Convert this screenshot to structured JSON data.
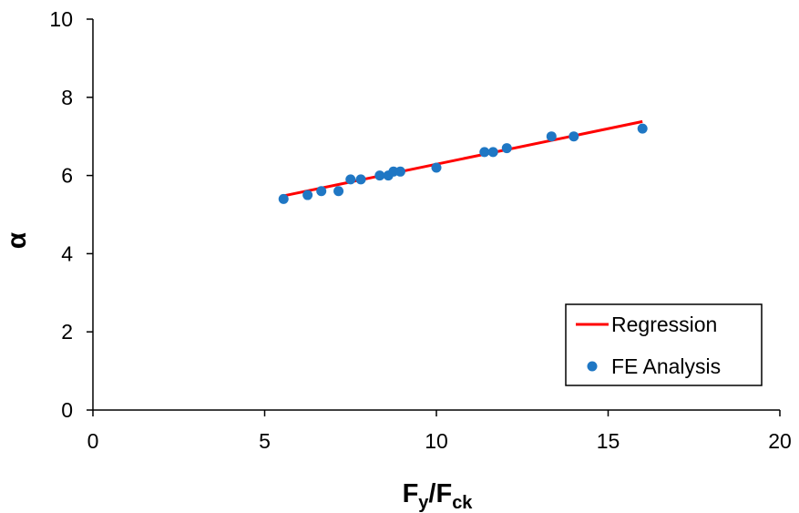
{
  "chart_data": {
    "type": "scatter",
    "xlabel": {
      "base": "F",
      "sub1": "y",
      "slash": "/F",
      "sub2": "ck"
    },
    "ylabel": "α",
    "xlim": [
      0,
      20
    ],
    "ylim": [
      0,
      10
    ],
    "x_ticks": [
      0,
      5,
      10,
      15,
      20
    ],
    "y_ticks": [
      0,
      2,
      4,
      6,
      8,
      10
    ],
    "grid": false,
    "legend_position": "bottom-right",
    "series": [
      {
        "name": "Regression",
        "kind": "line",
        "color": "#ff0000",
        "x": [
          5.5,
          16.0
        ],
        "y": [
          5.47,
          7.38
        ]
      },
      {
        "name": "FE Analysis",
        "kind": "scatter",
        "color": "#1f77c4",
        "x": [
          5.55,
          6.25,
          6.65,
          7.15,
          7.5,
          7.8,
          8.35,
          8.6,
          8.75,
          8.95,
          10.0,
          11.4,
          11.65,
          12.05,
          13.35,
          14.0,
          16.0
        ],
        "y": [
          5.4,
          5.5,
          5.6,
          5.6,
          5.9,
          5.9,
          6.0,
          6.0,
          6.1,
          6.1,
          6.2,
          6.6,
          6.6,
          6.7,
          7.0,
          7.0,
          7.2
        ]
      }
    ]
  }
}
